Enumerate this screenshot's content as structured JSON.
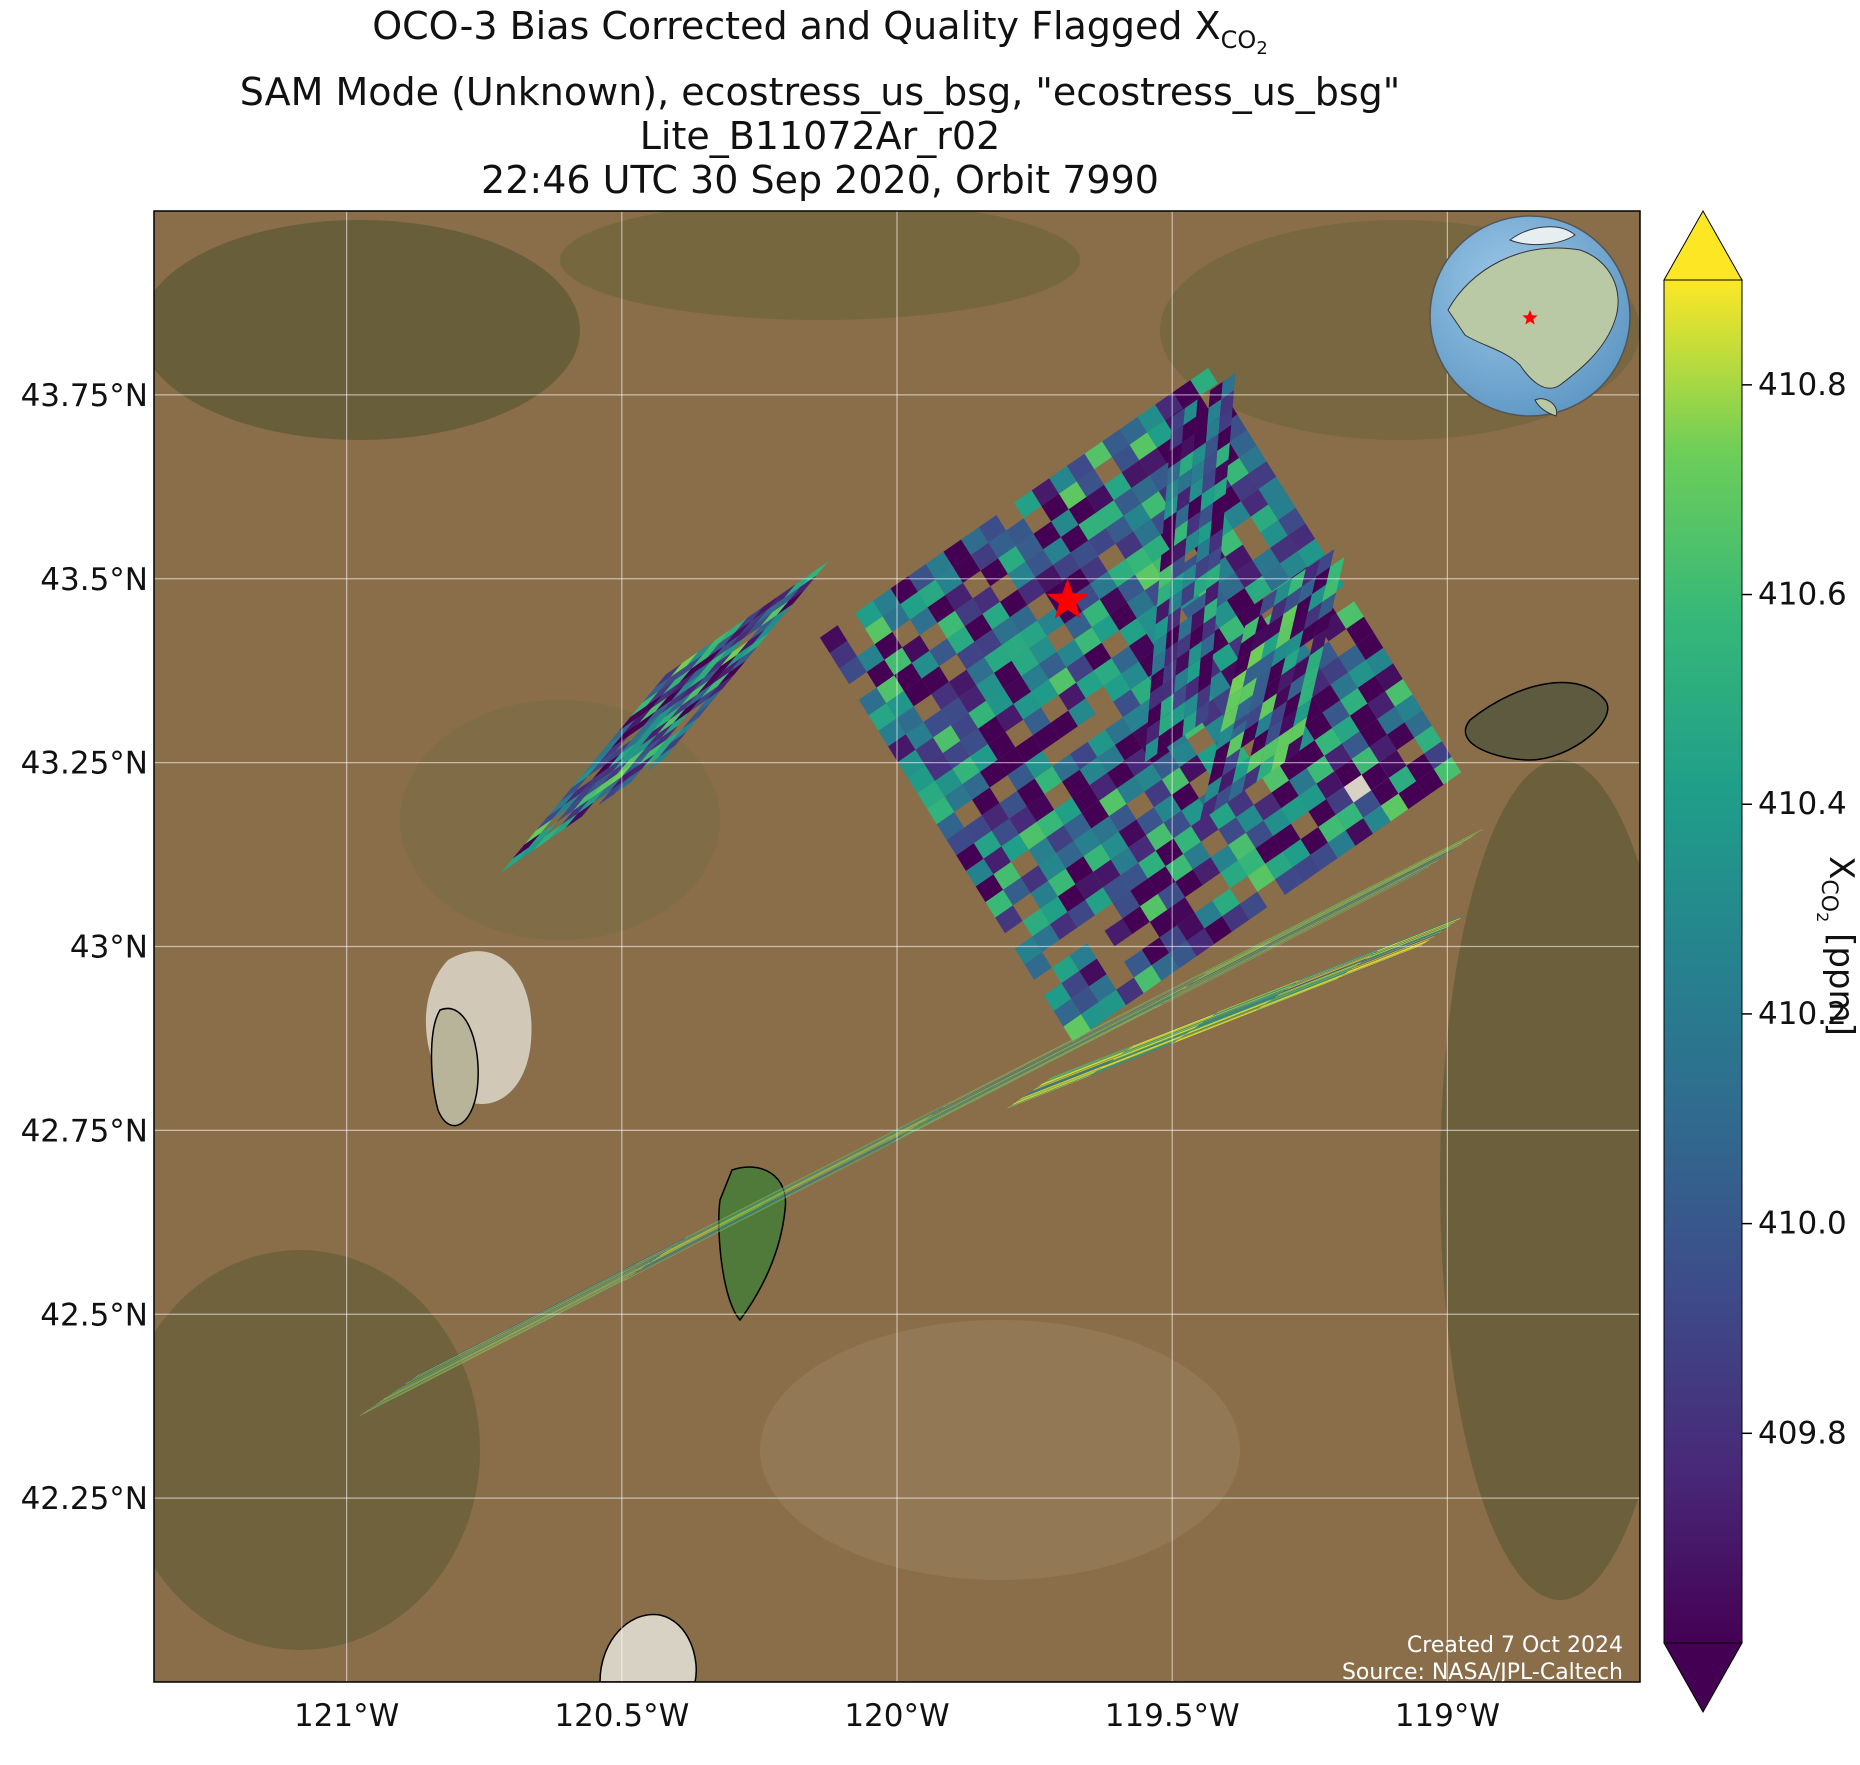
{
  "title": {
    "line1_prefix": "OCO-3 Bias Corrected and Quality Flagged X",
    "line1_subscript": "CO",
    "line1_subscript2": "2",
    "line2": "SAM Mode (Unknown), ecostress_us_bsg, \"ecostress_us_bsg\"",
    "line3": "Lite_B11072Ar_r02",
    "line4": "22:46 UTC 30 Sep 2020, Orbit 7990"
  },
  "map": {
    "lon_range": [
      -121.35,
      -118.65
    ],
    "lat_range": [
      42.0,
      44.0
    ],
    "lon_ticks": [
      {
        "value": -121.0,
        "label": "121°W"
      },
      {
        "value": -120.5,
        "label": "120.5°W"
      },
      {
        "value": -120.0,
        "label": "120°W"
      },
      {
        "value": -119.5,
        "label": "119.5°W"
      },
      {
        "value": -119.0,
        "label": "119°W"
      }
    ],
    "lat_ticks": [
      {
        "value": 43.75,
        "label": "43.75°N"
      },
      {
        "value": 43.5,
        "label": "43.5°N"
      },
      {
        "value": 43.25,
        "label": "43.25°N"
      },
      {
        "value": 43.0,
        "label": "43°N"
      },
      {
        "value": 42.75,
        "label": "42.75°N"
      },
      {
        "value": 42.5,
        "label": "42.5°N"
      },
      {
        "value": 42.25,
        "label": "42.25°N"
      }
    ],
    "grid": true,
    "target_marker": {
      "lon": -119.69,
      "lat": 43.47,
      "color": "#ff0000",
      "symbol": "star"
    },
    "inset_globe": {
      "placement": "top-right",
      "marker_color": "#ff0000"
    },
    "credits": {
      "created": "Created 7 Oct 2024",
      "source": "Source: NASA/JPL-Caltech"
    },
    "basemap_colors": {
      "land": "#8a6e4a",
      "dark_land": "#5e5a35",
      "playa": "#d8d2c4",
      "lake": "#5e7a4a"
    }
  },
  "colorbar": {
    "label_prefix": "X",
    "label_subscript": "CO",
    "label_subscript2": "2",
    "label_suffix": " [ppm]",
    "min": 409.6,
    "max": 410.9,
    "extend": "both",
    "colormap": "viridis",
    "ticks": [
      {
        "value": 409.8,
        "label": "409.8"
      },
      {
        "value": 410.0,
        "label": "410.0"
      },
      {
        "value": 410.2,
        "label": "410.2"
      },
      {
        "value": 410.4,
        "label": "410.4"
      },
      {
        "value": 410.6,
        "label": "410.6"
      },
      {
        "value": 410.8,
        "label": "410.8"
      }
    ]
  },
  "chart_data": {
    "type": "heatmap",
    "variable": "XCO2",
    "units": "ppm",
    "swaths": [
      {
        "lon0": -120.42,
        "lat0": 43.37,
        "lon1": -120.72,
        "lat1": 43.1,
        "width_deg": 0.36,
        "mean": 410.1,
        "cols": 10,
        "rows": 14
      },
      {
        "lon0": -120.14,
        "lat0": 43.42,
        "lon1": -119.68,
        "lat1": 42.87,
        "width_deg": 0.86,
        "mean": 410.05,
        "cols": 22,
        "rows": 26
      },
      {
        "lon0": -119.5,
        "lat0": 43.72,
        "lon1": -119.55,
        "lat1": 43.25,
        "width_deg": 0.14,
        "mean": 410.0,
        "cols": 5,
        "rows": 20
      },
      {
        "lon0": -119.36,
        "lat0": 43.46,
        "lon1": -119.45,
        "lat1": 43.17,
        "width_deg": 0.22,
        "mean": 410.1,
        "cols": 7,
        "rows": 12
      },
      {
        "lon0": -119.05,
        "lat0": 43.1,
        "lon1": -120.98,
        "lat1": 42.36,
        "width_deg": 0.14,
        "mean": 410.5,
        "cols": 70,
        "rows": 4
      },
      {
        "lon0": -119.05,
        "lat0": 43.0,
        "lon1": -119.8,
        "lat1": 42.78,
        "width_deg": 0.1,
        "mean": 410.6,
        "cols": 30,
        "rows": 5
      }
    ]
  }
}
